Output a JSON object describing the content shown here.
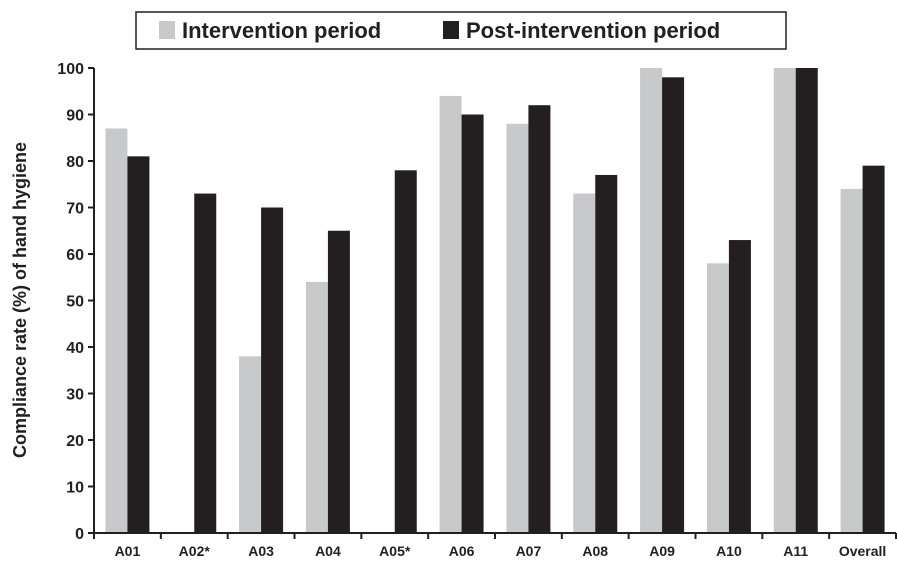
{
  "chart_data": {
    "type": "bar",
    "title": "",
    "xlabel": "",
    "ylabel": "Compliance rate (%) of hand hygiene",
    "ylim": [
      0,
      100
    ],
    "yticks": [
      0,
      10,
      20,
      30,
      40,
      50,
      60,
      70,
      80,
      90,
      100
    ],
    "grid": false,
    "legend_position": "top-center",
    "categories": [
      "A01",
      "A02*",
      "A03",
      "A04",
      "A05*",
      "A06",
      "A07",
      "A08",
      "A09",
      "A10",
      "A11",
      "Overall"
    ],
    "series": [
      {
        "name": "Intervention period",
        "color": "#c8c9cb",
        "values": [
          87,
          null,
          38,
          54,
          null,
          94,
          88,
          73,
          100,
          58,
          100,
          74
        ]
      },
      {
        "name": "Post-intervention period",
        "color": "#231f20",
        "values": [
          81,
          73,
          70,
          65,
          78,
          90,
          92,
          77,
          98,
          63,
          100,
          79
        ]
      }
    ]
  }
}
